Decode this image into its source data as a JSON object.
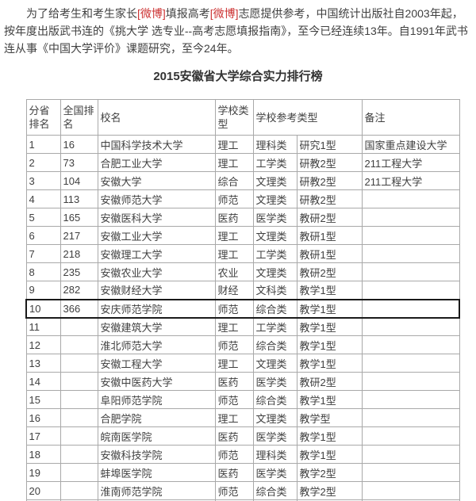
{
  "colors": {
    "accent_red": "#cc3333",
    "border_gray": "#a9a9a9",
    "text_gray": "#404040",
    "highlight_border": "#1a1a1a"
  },
  "intro": {
    "segments": [
      {
        "text": "为了给考生和考生家长",
        "red": false
      },
      {
        "text": "[微博]",
        "red": true
      },
      {
        "text": "填报高考",
        "red": false
      },
      {
        "text": "[微博]",
        "red": true
      },
      {
        "text": "志愿提供参考，中国统计出版社自2003年起，按年度出版武书连的《挑大学 选专业--高考志愿填报指南》，至今已经连续13年。自1991年武书连从事《中国大学评价》课题研究，至今24年。",
        "red": false
      }
    ]
  },
  "title": "2015安徽省大学综合实力排行榜",
  "table": {
    "headers": [
      "分省排名",
      "全国排名",
      "校名",
      "学校类型",
      "学校参考类型",
      "备注"
    ],
    "rows": [
      {
        "province_rank": "1",
        "national_rank": "16",
        "name": "中国科学技术大学",
        "type": "理工",
        "ref_category": "理科类",
        "ref_type": "研究1型",
        "note": "国家重点建设大学",
        "highlighted": false
      },
      {
        "province_rank": "2",
        "national_rank": "73",
        "name": "合肥工业大学",
        "type": "理工",
        "ref_category": "工学类",
        "ref_type": "研教2型",
        "note": "211工程大学",
        "highlighted": false
      },
      {
        "province_rank": "3",
        "national_rank": "104",
        "name": "安徽大学",
        "type": "综合",
        "ref_category": "文理类",
        "ref_type": "研教2型",
        "note": "211工程大学",
        "highlighted": false
      },
      {
        "province_rank": "4",
        "national_rank": "113",
        "name": "安徽师范大学",
        "type": "师范",
        "ref_category": "文理类",
        "ref_type": "研教2型",
        "note": "",
        "highlighted": false
      },
      {
        "province_rank": "5",
        "national_rank": "165",
        "name": "安徽医科大学",
        "type": "医药",
        "ref_category": "医学类",
        "ref_type": "教研2型",
        "note": "",
        "highlighted": false
      },
      {
        "province_rank": "6",
        "national_rank": "217",
        "name": "安徽工业大学",
        "type": "理工",
        "ref_category": "文理类",
        "ref_type": "教研1型",
        "note": "",
        "highlighted": false
      },
      {
        "province_rank": "7",
        "national_rank": "218",
        "name": "安徽理工大学",
        "type": "理工",
        "ref_category": "工学类",
        "ref_type": "教研1型",
        "note": "",
        "highlighted": false
      },
      {
        "province_rank": "8",
        "national_rank": "235",
        "name": "安徽农业大学",
        "type": "农业",
        "ref_category": "文理类",
        "ref_type": "教研2型",
        "note": "",
        "highlighted": false
      },
      {
        "province_rank": "9",
        "national_rank": "282",
        "name": "安徽财经大学",
        "type": "财经",
        "ref_category": "文科类",
        "ref_type": "教学1型",
        "note": "",
        "highlighted": false
      },
      {
        "province_rank": "10",
        "national_rank": "366",
        "name": "安庆师范学院",
        "type": "师范",
        "ref_category": "综合类",
        "ref_type": "教学1型",
        "note": "",
        "highlighted": true
      },
      {
        "province_rank": "11",
        "national_rank": "",
        "name": "安徽建筑大学",
        "type": "理工",
        "ref_category": "工学类",
        "ref_type": "教学1型",
        "note": "",
        "highlighted": false
      },
      {
        "province_rank": "12",
        "national_rank": "",
        "name": "淮北师范大学",
        "type": "师范",
        "ref_category": "综合类",
        "ref_type": "教学1型",
        "note": "",
        "highlighted": false
      },
      {
        "province_rank": "13",
        "national_rank": "",
        "name": "安徽工程大学",
        "type": "理工",
        "ref_category": "文理类",
        "ref_type": "教学1型",
        "note": "",
        "highlighted": false
      },
      {
        "province_rank": "14",
        "national_rank": "",
        "name": "安徽中医药大学",
        "type": "医药",
        "ref_category": "医学类",
        "ref_type": "教研2型",
        "note": "",
        "highlighted": false
      },
      {
        "province_rank": "15",
        "national_rank": "",
        "name": "阜阳师范学院",
        "type": "师范",
        "ref_category": "综合类",
        "ref_type": "教学1型",
        "note": "",
        "highlighted": false
      },
      {
        "province_rank": "16",
        "national_rank": "",
        "name": "合肥学院",
        "type": "理工",
        "ref_category": "文理类",
        "ref_type": "教学型",
        "note": "",
        "highlighted": false
      },
      {
        "province_rank": "17",
        "national_rank": "",
        "name": "皖南医学院",
        "type": "医药",
        "ref_category": "医学类",
        "ref_type": "教学1型",
        "note": "",
        "highlighted": false
      },
      {
        "province_rank": "18",
        "national_rank": "",
        "name": "安徽科技学院",
        "type": "师范",
        "ref_category": "理科类",
        "ref_type": "教学1型",
        "note": "",
        "highlighted": false
      },
      {
        "province_rank": "19",
        "national_rank": "",
        "name": "蚌埠医学院",
        "type": "医药",
        "ref_category": "医学类",
        "ref_type": "教学2型",
        "note": "",
        "highlighted": false
      },
      {
        "province_rank": "20",
        "national_rank": "",
        "name": "淮南师范学院",
        "type": "师范",
        "ref_category": "综合类",
        "ref_type": "教学2型",
        "note": "",
        "highlighted": false
      },
      {
        "province_rank": "",
        "national_rank": "",
        "name": "",
        "type": "",
        "ref_category": "",
        "ref_type": "",
        "note": "",
        "highlighted": false
      }
    ]
  }
}
